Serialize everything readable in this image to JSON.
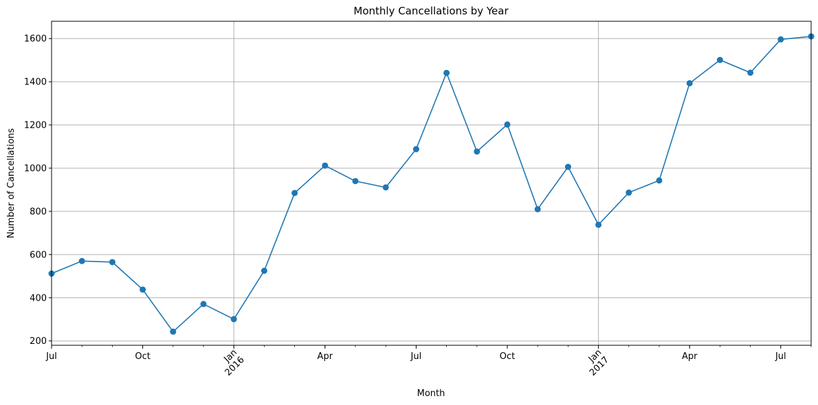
{
  "chart_data": {
    "type": "line",
    "title": "Monthly Cancellations by Year",
    "xlabel": "Month",
    "ylabel": "Number of Cancellations",
    "grid": true,
    "color": "#1f77b4",
    "x": [
      "2015-07",
      "2015-08",
      "2015-09",
      "2015-10",
      "2015-11",
      "2015-12",
      "2016-01",
      "2016-02",
      "2016-03",
      "2016-04",
      "2016-05",
      "2016-06",
      "2016-07",
      "2016-08",
      "2016-09",
      "2016-10",
      "2016-11",
      "2016-12",
      "2017-01",
      "2017-02",
      "2017-03",
      "2017-04",
      "2017-05",
      "2017-06",
      "2017-07",
      "2017-08"
    ],
    "series": [
      {
        "values": [
          512,
          570,
          565,
          438,
          243,
          371,
          301,
          525,
          885,
          1012,
          940,
          911,
          1088,
          1441,
          1077,
          1202,
          810,
          1006,
          738,
          887,
          943,
          1393,
          1501,
          1442,
          1596,
          1610
        ]
      }
    ],
    "ylim": [
      180,
      1680
    ],
    "yticks": [
      200,
      400,
      600,
      800,
      1000,
      1200,
      1400,
      1600
    ],
    "xticks": [
      {
        "month": "2015-07",
        "label": "Jul",
        "year": ""
      },
      {
        "month": "2015-10",
        "label": "Oct",
        "year": ""
      },
      {
        "month": "2016-01",
        "label": "Jan",
        "year": "2016"
      },
      {
        "month": "2016-04",
        "label": "Apr",
        "year": ""
      },
      {
        "month": "2016-07",
        "label": "Jul",
        "year": ""
      },
      {
        "month": "2016-10",
        "label": "Oct",
        "year": ""
      },
      {
        "month": "2017-01",
        "label": "Jan",
        "year": "2017"
      },
      {
        "month": "2017-04",
        "label": "Apr",
        "year": ""
      },
      {
        "month": "2017-07",
        "label": "Jul",
        "year": ""
      }
    ]
  }
}
